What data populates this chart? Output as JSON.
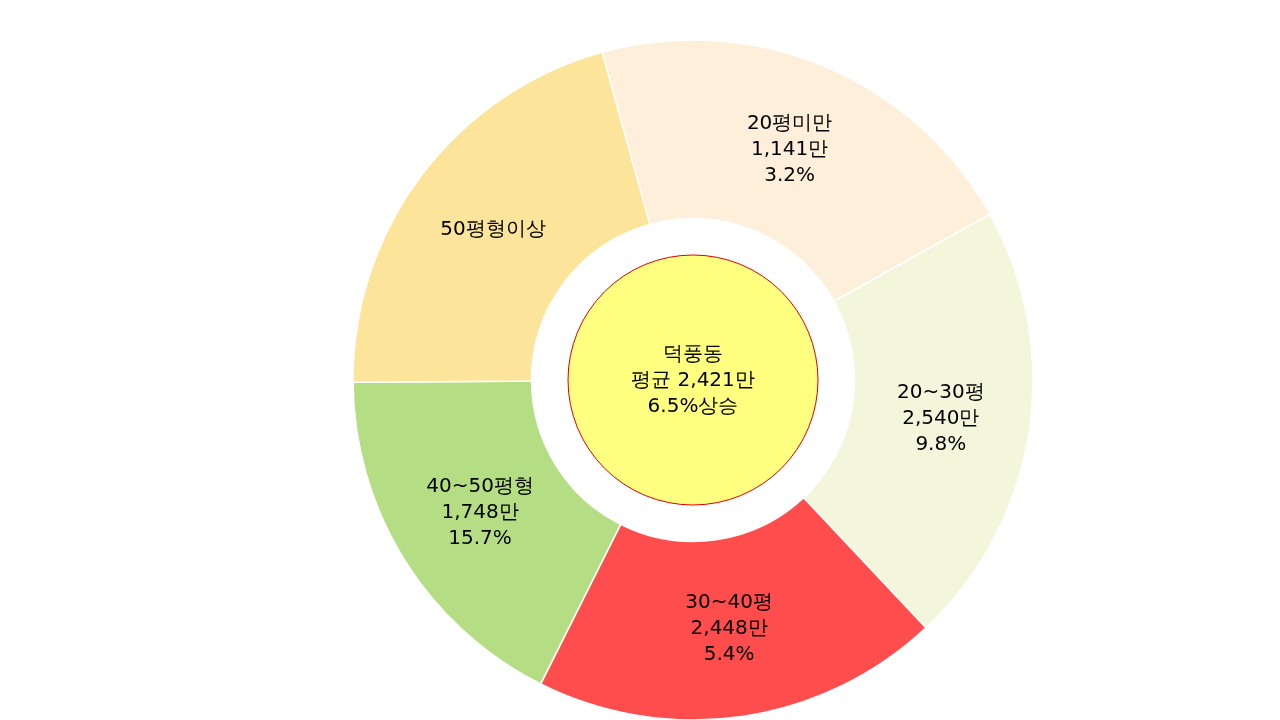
{
  "chart_data": {
    "type": "donut",
    "categories": [
      "20평미만",
      "20~30평",
      "30~40평",
      "40~50평형",
      "50평형이상"
    ],
    "values": [
      21.2,
      21.1,
      19.4,
      17.5,
      20.8
    ],
    "colors": [
      "#fdefd9",
      "#f4f6dc",
      "#ff4c4c",
      "#b5de84",
      "#fce59a"
    ],
    "annotations": [
      "덕풍동\n평균 2,421만\n6.5%상승",
      {
        "text": "1,141만\n3.2%",
        "x": "20평미만"
      },
      {
        "text": "2,540만\n9.8%",
        "x": "20~30평"
      },
      {
        "text": "2,448만\n5.4%",
        "x": "30~40평"
      },
      {
        "text": "1,748만\n15.7%",
        "x": "40~50평형"
      }
    ]
  }
}
